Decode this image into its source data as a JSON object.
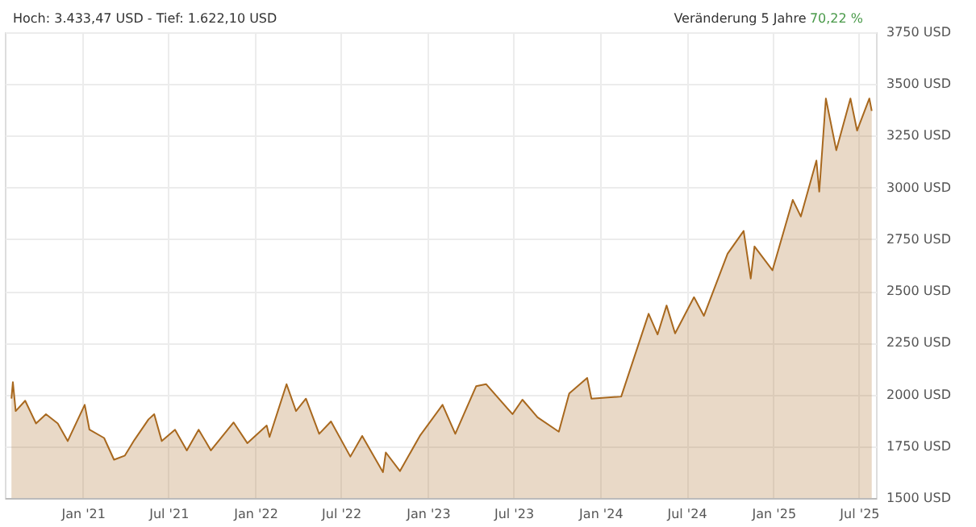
{
  "chart_data": {
    "type": "area",
    "title": "Hoch: 3.433,47 USD - Tief: 1.622,10 USD",
    "annotations": [
      "Veränderung 5 Jahre",
      "70,22 %"
    ],
    "x": [
      "2020-08-03",
      "2020-08-06",
      "2020-08-12",
      "2020-09-01",
      "2020-09-24",
      "2020-10-15",
      "2020-11-09",
      "2020-11-30",
      "2021-01-05",
      "2021-01-15",
      "2021-02-15",
      "2021-03-08",
      "2021-03-31",
      "2021-04-20",
      "2021-05-20",
      "2021-06-01",
      "2021-06-17",
      "2021-07-15",
      "2021-08-09",
      "2021-09-03",
      "2021-09-29",
      "2021-11-16",
      "2021-12-15",
      "2022-01-25",
      "2022-01-31",
      "2022-03-08",
      "2022-03-28",
      "2022-04-18",
      "2022-05-16",
      "2022-06-10",
      "2022-07-21",
      "2022-08-15",
      "2022-09-28",
      "2022-10-04",
      "2022-11-03",
      "2022-12-15",
      "2023-02-01",
      "2023-02-28",
      "2023-04-13",
      "2023-05-04",
      "2023-06-29",
      "2023-07-20",
      "2023-08-21",
      "2023-10-05",
      "2023-10-27",
      "2023-12-04",
      "2023-12-13",
      "2024-02-14",
      "2024-04-12",
      "2024-05-01",
      "2024-05-20",
      "2024-06-07",
      "2024-07-17",
      "2024-08-07",
      "2024-09-26",
      "2024-10-30",
      "2024-11-14",
      "2024-11-22",
      "2024-12-30",
      "2025-02-11",
      "2025-02-28",
      "2025-04-02",
      "2025-04-08",
      "2025-04-22",
      "2025-05-14",
      "2025-06-13",
      "2025-06-27",
      "2025-07-23",
      "2025-07-28"
    ],
    "series": [
      {
        "color": "#a8681e",
        "values": [
          1980,
          2060,
          1920,
          1970,
          1860,
          1905,
          1860,
          1775,
          1950,
          1830,
          1790,
          1685,
          1705,
          1780,
          1880,
          1905,
          1775,
          1830,
          1730,
          1830,
          1730,
          1865,
          1765,
          1850,
          1795,
          2050,
          1920,
          1980,
          1810,
          1870,
          1700,
          1800,
          1625,
          1720,
          1630,
          1800,
          1950,
          1810,
          2040,
          2050,
          1905,
          1975,
          1890,
          1820,
          2005,
          2080,
          1980,
          1990,
          2390,
          2290,
          2430,
          2295,
          2470,
          2380,
          2680,
          2790,
          2560,
          2715,
          2600,
          2940,
          2860,
          3130,
          2980,
          3430,
          3180,
          3430,
          3275,
          3430,
          3370
        ]
      }
    ],
    "xlim": [
      "2020-07-20",
      "2025-08-06"
    ],
    "xticks": [
      {
        "value": "2021-01-01",
        "label": "Jan '21"
      },
      {
        "value": "2021-07-01",
        "label": "Jul '21"
      },
      {
        "value": "2022-01-01",
        "label": "Jan '22"
      },
      {
        "value": "2022-07-01",
        "label": "Jul '22"
      },
      {
        "value": "2023-01-01",
        "label": "Jan '23"
      },
      {
        "value": "2023-07-01",
        "label": "Jul '23"
      },
      {
        "value": "2024-01-01",
        "label": "Jan '24"
      },
      {
        "value": "2024-07-01",
        "label": "Jul '24"
      },
      {
        "value": "2025-01-01",
        "label": "Jan '25"
      },
      {
        "value": "2025-07-01",
        "label": "Jul '25"
      }
    ],
    "ylim": [
      1500,
      3750
    ],
    "yticks": [
      {
        "value": 1500,
        "label": "1500 USD"
      },
      {
        "value": 1750,
        "label": "1750 USD"
      },
      {
        "value": 2000,
        "label": "2000 USD"
      },
      {
        "value": 2250,
        "label": "2250 USD"
      },
      {
        "value": 2500,
        "label": "2500 USD"
      },
      {
        "value": 2750,
        "label": "2750 USD"
      },
      {
        "value": 3000,
        "label": "3000 USD"
      },
      {
        "value": 3250,
        "label": "3250 USD"
      },
      {
        "value": 3500,
        "label": "3500 USD"
      },
      {
        "value": 3750,
        "label": "3750 USD"
      }
    ],
    "grid": true
  }
}
